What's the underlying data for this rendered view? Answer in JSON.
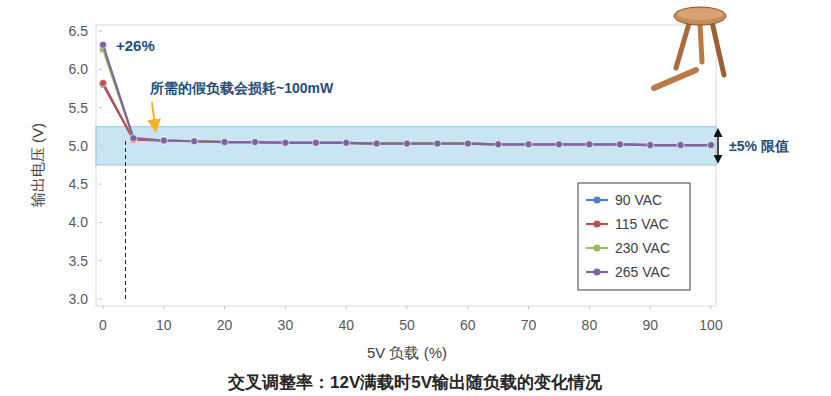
{
  "chart_data": {
    "type": "line",
    "title": "交叉调整率：12V满载时5V输出随负载的变化情况",
    "x_label": "5V 负载 (%)",
    "y_label": "输出电压 (V)",
    "x": [
      0,
      5,
      10,
      15,
      20,
      25,
      30,
      35,
      40,
      45,
      50,
      55,
      60,
      65,
      70,
      75,
      80,
      85,
      90,
      95,
      100
    ],
    "series": [
      {
        "name": "90 VAC",
        "color": "#4f81c4",
        "marker": "circle",
        "values": [
          5.8,
          5.08,
          5.07,
          5.06,
          5.05,
          5.05,
          5.04,
          5.04,
          5.04,
          5.03,
          5.03,
          5.03,
          5.03,
          5.02,
          5.02,
          5.02,
          5.02,
          5.02,
          5.01,
          5.01,
          5.01
        ]
      },
      {
        "name": "115 VAC",
        "color": "#c0504d",
        "marker": "circle",
        "values": [
          5.82,
          5.08,
          5.07,
          5.06,
          5.05,
          5.05,
          5.04,
          5.04,
          5.04,
          5.03,
          5.03,
          5.03,
          5.03,
          5.02,
          5.02,
          5.02,
          5.02,
          5.02,
          5.01,
          5.01,
          5.01
        ]
      },
      {
        "name": "230 VAC",
        "color": "#9bbb59",
        "marker": "circle",
        "values": [
          6.26,
          5.1,
          5.07,
          5.06,
          5.05,
          5.05,
          5.04,
          5.04,
          5.04,
          5.03,
          5.03,
          5.03,
          5.03,
          5.02,
          5.02,
          5.02,
          5.02,
          5.02,
          5.01,
          5.01,
          5.01
        ]
      },
      {
        "name": "265 VAC",
        "color": "#8064a2",
        "marker": "circle",
        "values": [
          6.32,
          5.1,
          5.07,
          5.06,
          5.05,
          5.05,
          5.04,
          5.04,
          5.04,
          5.03,
          5.03,
          5.03,
          5.03,
          5.02,
          5.02,
          5.02,
          5.02,
          5.02,
          5.01,
          5.01,
          5.01
        ]
      }
    ],
    "xlim": [
      0,
      100
    ],
    "xticks": [
      0,
      10,
      20,
      30,
      40,
      50,
      60,
      70,
      80,
      90,
      100
    ],
    "ylim": [
      3,
      6.5
    ],
    "yticks": [
      {
        "value": 3,
        "label": "3.0"
      },
      3.5,
      {
        "value": 4,
        "label": "4.0"
      },
      4.5,
      {
        "value": 5,
        "label": "5.0"
      },
      5.5,
      {
        "value": 6,
        "label": "6.0"
      },
      6.5
    ],
    "grid": false,
    "legend": "right",
    "limit_band": {
      "label": "±5% 限值",
      "range": [
        4.75,
        5.25
      ]
    },
    "annotations": [
      {
        "text": "+26%",
        "x": 0,
        "y": 6.32
      },
      {
        "text": "所需的假负载会损耗~100mW",
        "x": 3.7,
        "y": 5.1
      }
    ]
  }
}
